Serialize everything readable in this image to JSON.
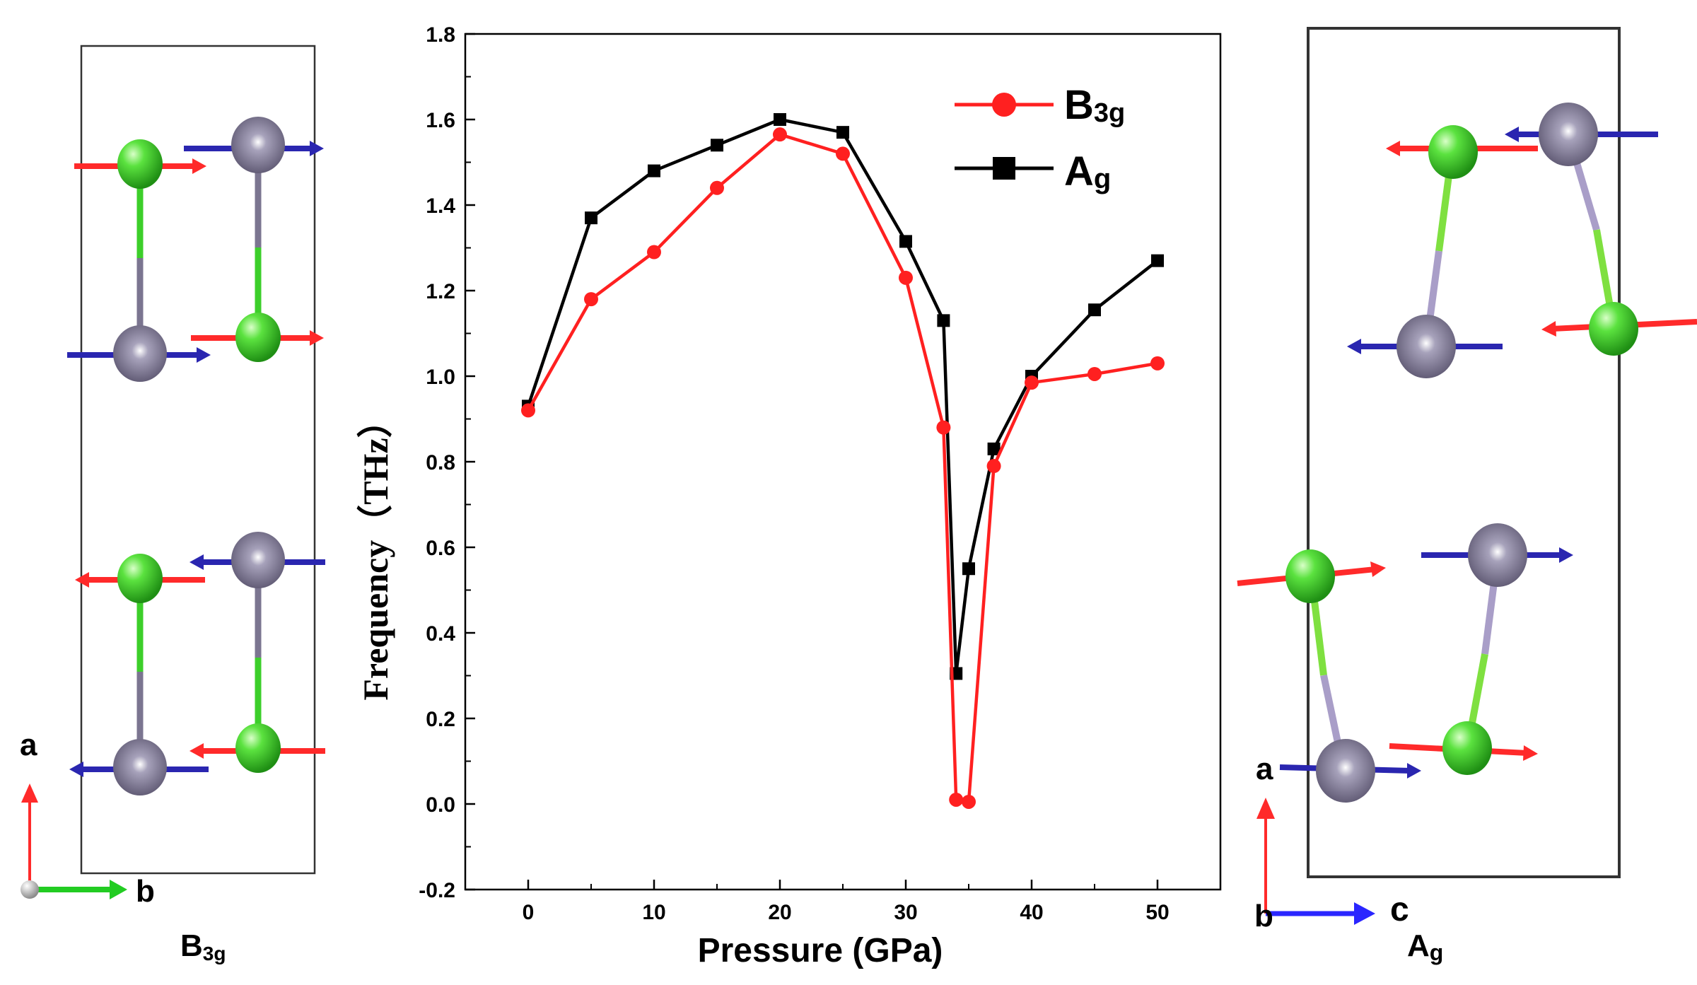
{
  "chart_data": {
    "type": "line",
    "xlabel": "Pressure (GPa)",
    "ylabel": "Frequency（THz）",
    "xlim": [
      -5,
      55
    ],
    "ylim": [
      -0.2,
      1.8
    ],
    "x_ticks": [
      "0",
      "10",
      "20",
      "30",
      "40",
      "50"
    ],
    "y_ticks": [
      "-0.2",
      "0.0",
      "0.2",
      "0.4",
      "0.6",
      "0.8",
      "1.0",
      "1.2",
      "1.4",
      "1.6",
      "1.8"
    ],
    "legend_position": "top-right",
    "series": [
      {
        "name": "B3g",
        "color": "#ff2020",
        "marker": "circle",
        "x": [
          0,
          5,
          10,
          15,
          20,
          25,
          30,
          33,
          34,
          35,
          37,
          40,
          45,
          50
        ],
        "y": [
          0.92,
          1.18,
          1.29,
          1.44,
          1.565,
          1.52,
          1.23,
          0.88,
          0.01,
          0.005,
          0.79,
          0.985,
          1.005,
          1.03
        ]
      },
      {
        "name": "Ag",
        "color": "#000000",
        "marker": "square",
        "x": [
          0,
          5,
          10,
          15,
          20,
          25,
          30,
          33,
          34,
          35,
          37,
          40,
          45,
          50
        ],
        "y": [
          0.93,
          1.37,
          1.48,
          1.54,
          1.6,
          1.57,
          1.315,
          1.13,
          0.305,
          0.55,
          0.83,
          1.0,
          1.155,
          1.27
        ]
      }
    ]
  },
  "legend": [
    {
      "main": "B",
      "sub": "3g"
    },
    {
      "main": "A",
      "sub": "g"
    }
  ],
  "left_panel": {
    "caption_main": "B",
    "caption_sub": "3g",
    "axis_up": "a",
    "axis_right": "b"
  },
  "right_panel": {
    "caption_main": "A",
    "caption_sub": "g",
    "axis_up": "a",
    "axis_right": "c",
    "axis_origin": "b"
  },
  "colors": {
    "atom_green": "#3ccf2a",
    "atom_purple": "#7b7590",
    "arrow_red": "#ff2a2a",
    "arrow_blue": "#2a26b0",
    "axis_green": "#22cc22"
  }
}
